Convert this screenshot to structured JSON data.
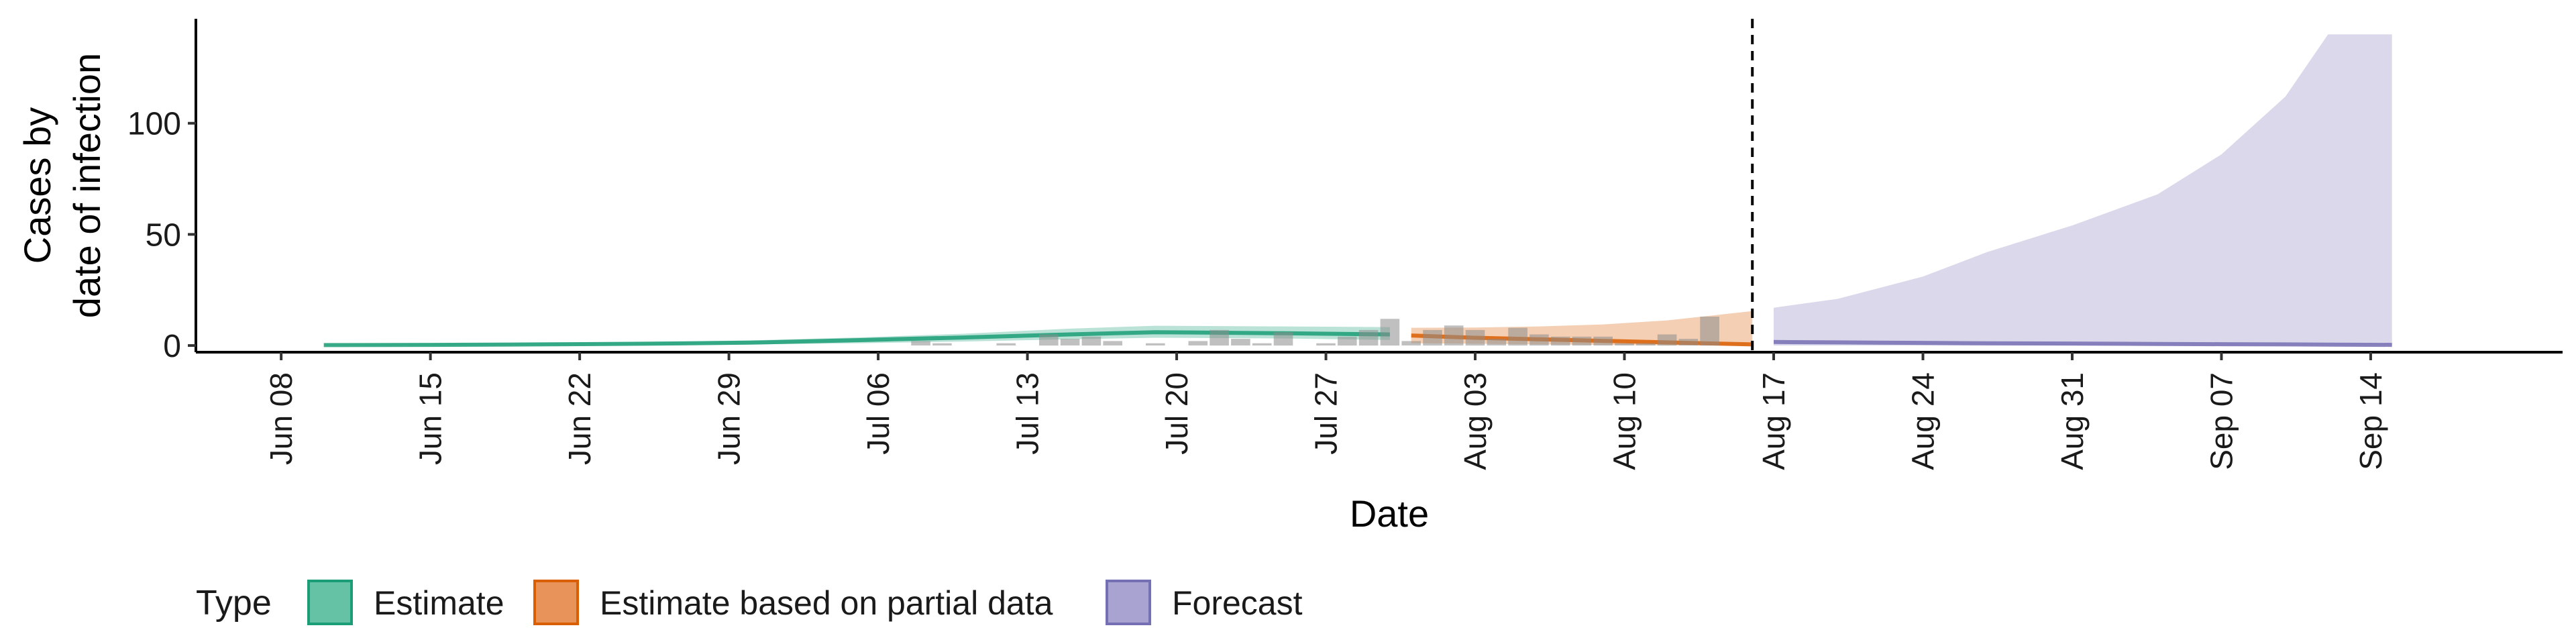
{
  "chart_data": {
    "type": "area",
    "xlabel": "Date",
    "ylabel_lines": [
      "Cases by",
      "date of infection"
    ],
    "x_tick_labels": [
      "Jun 08",
      "Jun 15",
      "Jun 22",
      "Jun 29",
      "Jul 06",
      "Jul 13",
      "Jul 20",
      "Jul 27",
      "Aug 03",
      "Aug 10",
      "Aug 17",
      "Aug 24",
      "Aug 31",
      "Sep 07",
      "Sep 14"
    ],
    "x_tick_dates": [
      "2020-06-08",
      "2020-06-15",
      "2020-06-22",
      "2020-06-29",
      "2020-07-06",
      "2020-07-13",
      "2020-07-20",
      "2020-07-27",
      "2020-08-03",
      "2020-08-10",
      "2020-08-17",
      "2020-08-24",
      "2020-08-31",
      "2020-09-07",
      "2020-09-14"
    ],
    "xlim": [
      "2020-06-04",
      "2020-09-23"
    ],
    "y_ticks": [
      0,
      50,
      100
    ],
    "ylim": [
      -3,
      147
    ],
    "forecast_boundary": "2020-08-16",
    "legend": {
      "title": "Type",
      "position": "bottom-left",
      "entries": [
        {
          "label": "Estimate",
          "fill": "#66c2a5",
          "stroke": "#1b9e77"
        },
        {
          "label": "Estimate based on partial data",
          "fill": "#e8935a",
          "stroke": "#d95f02"
        },
        {
          "label": "Forecast",
          "fill": "#a8a3d0",
          "stroke": "#7570b3"
        }
      ]
    },
    "colors": {
      "estimate": "#1b9e77",
      "partial": "#d95f02",
      "forecast": "#7570b3",
      "observed_bars": "#8c8c8c",
      "boundary": "#000000"
    },
    "series": [
      {
        "type": "Estimate",
        "x": [
          "2020-06-10",
          "2020-06-15",
          "2020-06-20",
          "2020-06-25",
          "2020-06-30",
          "2020-07-05",
          "2020-07-10",
          "2020-07-15",
          "2020-07-19",
          "2020-07-25",
          "2020-07-30"
        ],
        "median": [
          0.2,
          0.3,
          0.5,
          0.8,
          1.3,
          2.4,
          3.6,
          5.0,
          6.0,
          5.5,
          5.0
        ],
        "lower_90": [
          0.0,
          0.0,
          0.1,
          0.2,
          0.5,
          1.0,
          1.8,
          2.8,
          3.5,
          3.2,
          2.5
        ],
        "upper_90": [
          0.5,
          0.8,
          1.1,
          1.6,
          2.3,
          3.6,
          5.3,
          7.6,
          8.9,
          8.6,
          8.3
        ]
      },
      {
        "type": "Estimate based on partial data",
        "x": [
          "2020-07-31",
          "2020-08-03",
          "2020-08-06",
          "2020-08-09",
          "2020-08-12",
          "2020-08-16"
        ],
        "median": [
          4.5,
          3.5,
          2.8,
          2.1,
          1.4,
          0.5
        ],
        "lower_90": [
          1.0,
          0.8,
          0.5,
          0.3,
          0.1,
          0.0
        ],
        "upper_90": [
          8.0,
          8.1,
          8.6,
          9.5,
          11.3,
          15.5
        ]
      },
      {
        "type": "Forecast",
        "x": [
          "2020-08-17",
          "2020-08-20",
          "2020-08-24",
          "2020-08-27",
          "2020-08-31",
          "2020-09-04",
          "2020-09-07",
          "2020-09-10",
          "2020-09-12",
          "2020-09-15"
        ],
        "median": [
          1.6,
          1.4,
          1.2,
          1.0,
          0.9,
          0.7,
          0.6,
          0.5,
          0.4,
          0.3
        ],
        "lower_90": [
          0.0,
          0.0,
          0.0,
          0.0,
          0.0,
          0.0,
          0.0,
          0.0,
          0.0,
          0.0
        ],
        "upper_90": [
          17.0,
          21.0,
          31.0,
          42.0,
          54.0,
          68.0,
          86.0,
          112.0,
          140.0,
          140.0
        ]
      }
    ],
    "observed": {
      "x": [
        "2020-07-08",
        "2020-07-09",
        "2020-07-12",
        "2020-07-14",
        "2020-07-15",
        "2020-07-16",
        "2020-07-17",
        "2020-07-19",
        "2020-07-21",
        "2020-07-22",
        "2020-07-23",
        "2020-07-24",
        "2020-07-25",
        "2020-07-27",
        "2020-07-28",
        "2020-07-29",
        "2020-07-30",
        "2020-07-31",
        "2020-08-01",
        "2020-08-02",
        "2020-08-03",
        "2020-08-04",
        "2020-08-05",
        "2020-08-06",
        "2020-08-07",
        "2020-08-08",
        "2020-08-09",
        "2020-08-10",
        "2020-08-11",
        "2020-08-12",
        "2020-08-13",
        "2020-08-14"
      ],
      "values": [
        2,
        1,
        1,
        5,
        3,
        4,
        2,
        1,
        2,
        7,
        3,
        1,
        6,
        1,
        4,
        7,
        12,
        2,
        7,
        9,
        7,
        3,
        8,
        5,
        4,
        4,
        4,
        1,
        1,
        5,
        3,
        13
      ]
    }
  }
}
